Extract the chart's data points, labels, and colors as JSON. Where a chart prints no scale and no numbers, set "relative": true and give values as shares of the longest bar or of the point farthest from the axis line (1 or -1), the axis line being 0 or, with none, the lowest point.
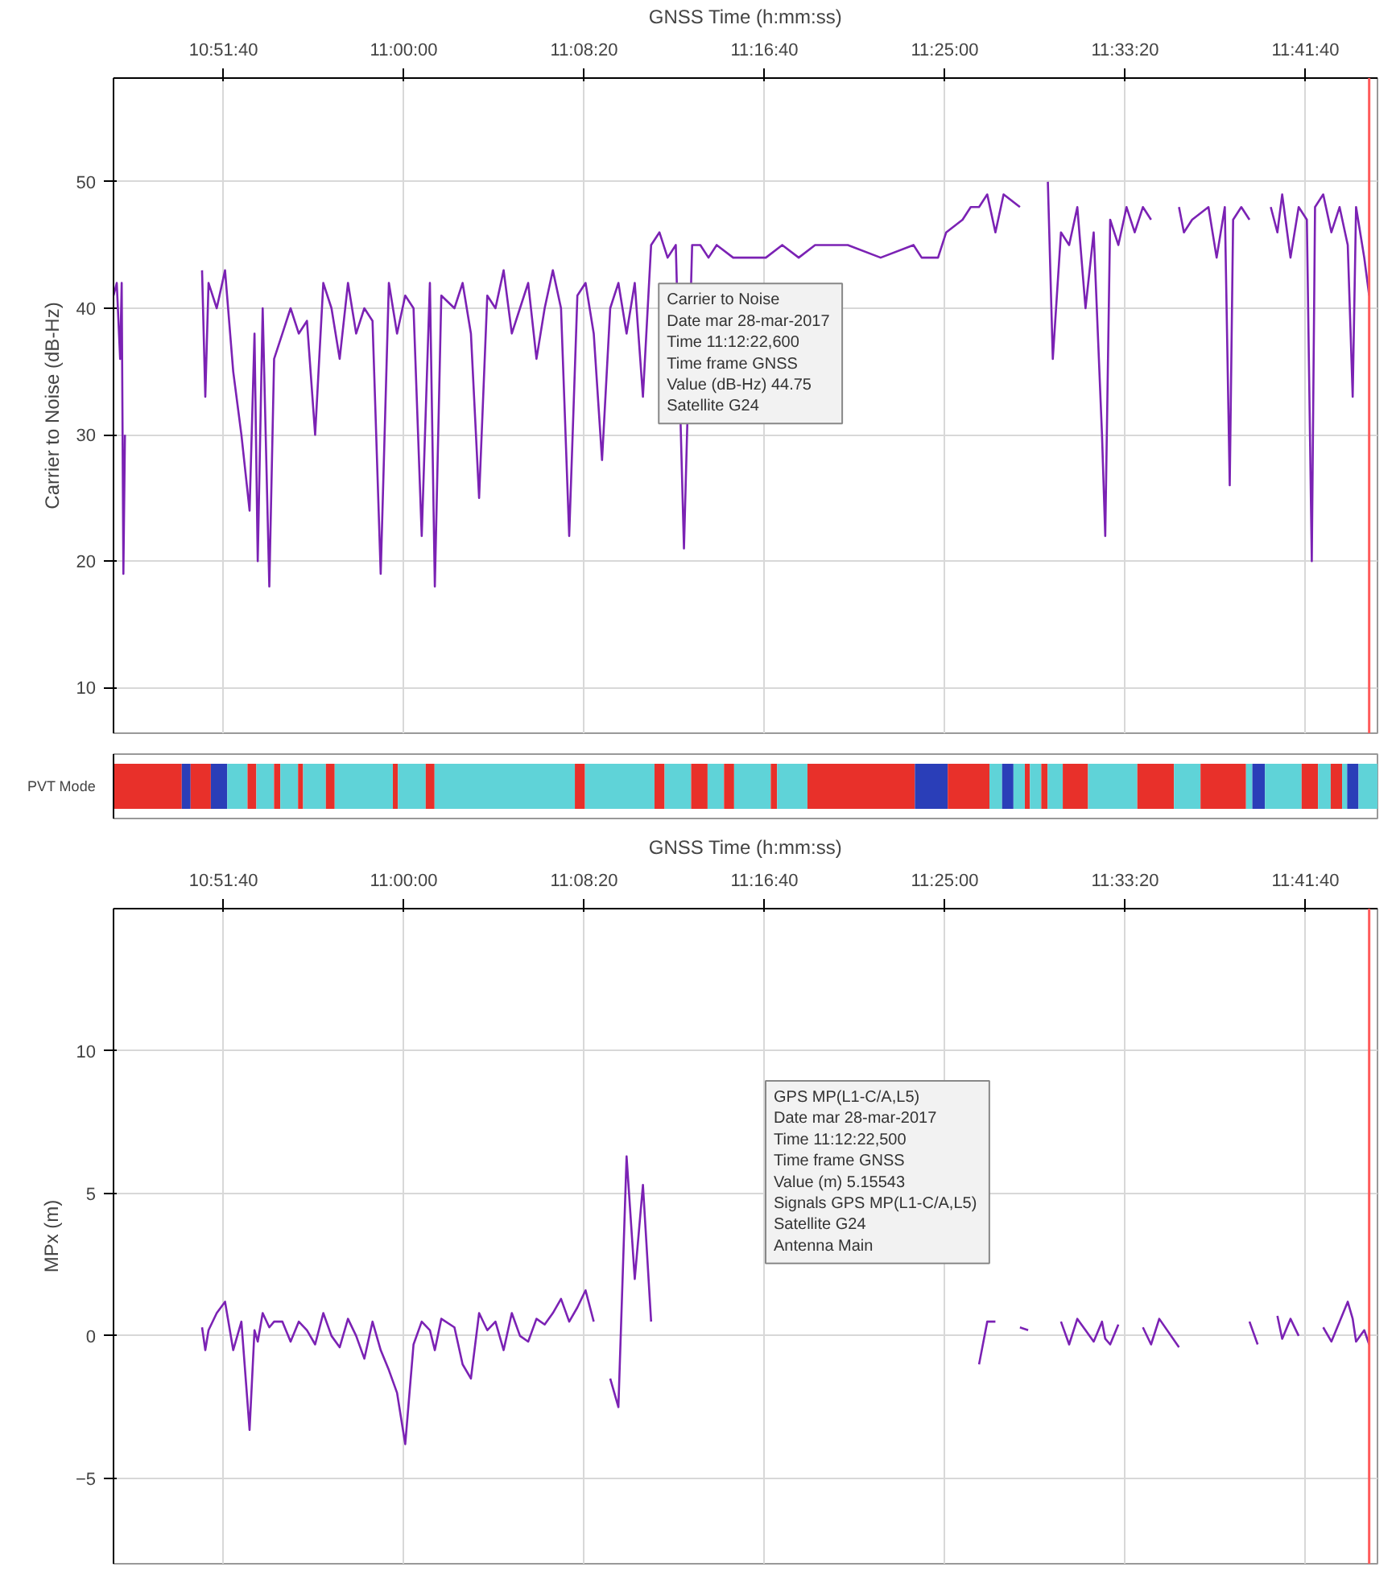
{
  "chart_data": [
    {
      "type": "line",
      "xlabel": "GNSS Time (h:mm:ss)",
      "ylabel": "Carrier to Noise (dB-Hz)",
      "xlim": [
        10.7764,
        11.75
      ],
      "xticks": [
        {
          "value": 10.86111,
          "label": "10:51:40"
        },
        {
          "value": 11.0,
          "label": "11:00:00"
        },
        {
          "value": 11.13889,
          "label": "11:08:20"
        },
        {
          "value": 11.27778,
          "label": "11:16:40"
        },
        {
          "value": 11.41667,
          "label": "11:25:00"
        },
        {
          "value": 11.55556,
          "label": "11:33:20"
        },
        {
          "value": 11.69444,
          "label": "11:41:40"
        }
      ],
      "ylim": [
        6.4,
        58.2
      ],
      "yticks": [
        10,
        20,
        30,
        40,
        50
      ],
      "grid": true,
      "x": [
        10.7764,
        10.7789,
        10.7815,
        10.7827,
        10.784,
        10.7852,
        10.7865,
        10.8446,
        10.8471,
        10.8496,
        10.8559,
        10.8623,
        10.8686,
        10.8749,
        10.8812,
        10.885,
        10.8875,
        10.8913,
        10.8964,
        10.9001,
        10.9065,
        10.9128,
        10.9191,
        10.9254,
        10.9317,
        10.938,
        10.9443,
        10.9506,
        10.957,
        10.9633,
        10.9696,
        10.9759,
        10.9822,
        10.9885,
        10.9948,
        11.0011,
        11.0075,
        11.0138,
        11.0201,
        11.0239,
        11.0289,
        11.039,
        11.0453,
        11.0517,
        11.058,
        11.0643,
        11.0706,
        11.0769,
        11.0832,
        11.0895,
        11.0958,
        11.1022,
        11.1085,
        11.1148,
        11.1211,
        11.1274,
        11.1337,
        11.14,
        11.1463,
        11.1527,
        11.159,
        11.1653,
        11.1716,
        11.1779,
        11.1842,
        11.1905,
        11.1969,
        11.2032,
        11.2095,
        11.2158,
        11.2221,
        11.2284,
        11.2347,
        11.241,
        11.2537,
        11.2663,
        11.2789,
        11.2915,
        11.3042,
        11.3168,
        11.342,
        11.3673,
        11.3926,
        11.3989,
        11.4052,
        11.4115,
        11.4178,
        11.4304,
        11.4367,
        11.4431,
        11.4494,
        11.4557,
        11.462,
        11.4746,
        11.4809,
        11.4961,
        11.4999,
        11.5062,
        11.5125,
        11.5188,
        11.5251,
        11.5314,
        11.5378,
        11.5403,
        11.5441,
        11.5504,
        11.5567,
        11.563,
        11.5693,
        11.5756,
        11.5819,
        11.5971,
        11.6009,
        11.6072,
        11.6198,
        11.6261,
        11.6324,
        11.6362,
        11.6388,
        11.6451,
        11.6514,
        11.6577,
        11.6678,
        11.6729,
        11.6766,
        11.683,
        11.6893,
        11.6956,
        11.6994,
        11.7019,
        11.7082,
        11.7145,
        11.7208,
        11.7271,
        11.7309,
        11.7335,
        11.7398,
        11.7436
      ],
      "series": [
        {
          "color": "#7b22b4",
          "values": [
            41,
            42,
            36,
            42,
            19,
            30,
            null,
            43,
            33,
            42,
            40,
            43,
            35,
            30,
            24,
            38,
            20,
            40,
            18,
            36,
            38,
            40,
            38,
            39,
            30,
            42,
            40,
            36,
            42,
            38,
            40,
            39,
            19,
            42,
            38,
            41,
            40,
            22,
            42,
            18,
            41,
            40,
            42,
            38,
            25,
            41,
            40,
            43,
            38,
            40,
            42,
            36,
            40,
            43,
            40,
            22,
            41,
            42,
            38,
            28,
            40,
            42,
            38,
            42,
            33,
            45,
            46,
            44,
            45,
            21,
            45,
            45,
            44,
            45,
            44,
            44,
            44,
            45,
            44,
            45,
            45,
            44,
            45,
            44,
            44,
            44,
            46,
            47,
            48,
            48,
            49,
            46,
            49,
            48,
            null,
            50,
            36,
            46,
            45,
            48,
            40,
            46,
            30,
            22,
            47,
            45,
            48,
            46,
            48,
            47,
            null,
            48,
            46,
            47,
            48,
            44,
            48,
            26,
            47,
            48,
            47,
            null,
            48,
            46,
            49,
            44,
            48,
            47,
            20,
            48,
            49,
            46,
            48,
            45,
            33,
            48,
            44,
            41
          ]
        }
      ],
      "ref_lines": [
        {
          "axis": "x",
          "value": 11.7436,
          "color": "#ff5a5a"
        }
      ],
      "annotations": [
        {
          "text": "Carrier to Noise\nDate  mar 28-mar-2017\nTime  11:12:22,600\nTime frame  GNSS\nValue (dB-Hz)  44.75\nSatellite  G24",
          "x": 11.2063,
          "y": 44.75
        }
      ]
    },
    {
      "type": "bar",
      "orientation": "horizontal",
      "stacked": true,
      "relative": true,
      "categories": [
        "PVT Mode"
      ],
      "series": [
        {
          "color": "#e8302a",
          "values": [
            0.054
          ]
        },
        {
          "color": "#2a3eb8",
          "values": [
            0.007
          ]
        },
        {
          "color": "#e8302a",
          "values": [
            0.016
          ]
        },
        {
          "color": "#2a3eb8",
          "values": [
            0.013
          ]
        },
        {
          "color": "#5fd3d8",
          "values": [
            0.016
          ]
        },
        {
          "color": "#e8302a",
          "values": [
            0.007
          ]
        },
        {
          "color": "#5fd3d8",
          "values": [
            0.014
          ]
        },
        {
          "color": "#e8302a",
          "values": [
            0.005
          ]
        },
        {
          "color": "#5fd3d8",
          "values": [
            0.014
          ]
        },
        {
          "color": "#e8302a",
          "values": [
            0.004
          ]
        },
        {
          "color": "#5fd3d8",
          "values": [
            0.018
          ]
        },
        {
          "color": "#e8302a",
          "values": [
            0.007
          ]
        },
        {
          "color": "#5fd3d8",
          "values": [
            0.046
          ]
        },
        {
          "color": "#e8302a",
          "values": [
            0.004
          ]
        },
        {
          "color": "#5fd3d8",
          "values": [
            0.022
          ]
        },
        {
          "color": "#e8302a",
          "values": [
            0.007
          ]
        },
        {
          "color": "#5fd3d8",
          "values": [
            0.111
          ]
        },
        {
          "color": "#e8302a",
          "values": [
            0.008
          ]
        },
        {
          "color": "#5fd3d8",
          "values": [
            0.055
          ]
        },
        {
          "color": "#e8302a",
          "values": [
            0.008
          ]
        },
        {
          "color": "#5fd3d8",
          "values": [
            0.021
          ]
        },
        {
          "color": "#e8302a",
          "values": [
            0.013
          ]
        },
        {
          "color": "#5fd3d8",
          "values": [
            0.013
          ]
        },
        {
          "color": "#e8302a",
          "values": [
            0.008
          ]
        },
        {
          "color": "#5fd3d8",
          "values": [
            0.029
          ]
        },
        {
          "color": "#e8302a",
          "values": [
            0.005
          ]
        },
        {
          "color": "#5fd3d8",
          "values": [
            0.024
          ]
        },
        {
          "color": "#e8302a",
          "values": [
            0.085
          ]
        },
        {
          "color": "#2a3eb8",
          "values": [
            0.026
          ]
        },
        {
          "color": "#e8302a",
          "values": [
            0.033
          ]
        },
        {
          "color": "#5fd3d8",
          "values": [
            0.01
          ]
        },
        {
          "color": "#2a3eb8",
          "values": [
            0.009
          ]
        },
        {
          "color": "#5fd3d8",
          "values": [
            0.009
          ]
        },
        {
          "color": "#e8302a",
          "values": [
            0.004
          ]
        },
        {
          "color": "#5fd3d8",
          "values": [
            0.009
          ]
        },
        {
          "color": "#e8302a",
          "values": [
            0.005
          ]
        },
        {
          "color": "#5fd3d8",
          "values": [
            0.012
          ]
        },
        {
          "color": "#e8302a",
          "values": [
            0.02
          ]
        },
        {
          "color": "#5fd3d8",
          "values": [
            0.039
          ]
        },
        {
          "color": "#e8302a",
          "values": [
            0.029
          ]
        },
        {
          "color": "#5fd3d8",
          "values": [
            0.021
          ]
        },
        {
          "color": "#e8302a",
          "values": [
            0.036
          ]
        },
        {
          "color": "#5fd3d8",
          "values": [
            0.005
          ]
        },
        {
          "color": "#2a3eb8",
          "values": [
            0.01
          ]
        },
        {
          "color": "#5fd3d8",
          "values": [
            0.029
          ]
        },
        {
          "color": "#e8302a",
          "values": [
            0.013
          ]
        },
        {
          "color": "#5fd3d8",
          "values": [
            0.01
          ]
        },
        {
          "color": "#e8302a",
          "values": [
            0.009
          ]
        },
        {
          "color": "#5fd3d8",
          "values": [
            0.004
          ]
        },
        {
          "color": "#2a3eb8",
          "values": [
            0.009
          ]
        },
        {
          "color": "#5fd3d8",
          "values": [
            0.015
          ]
        }
      ]
    },
    {
      "type": "line",
      "xlabel": "GNSS Time (h:mm:ss)",
      "ylabel": "MPx (m)",
      "xlim": [
        10.7764,
        11.75
      ],
      "xticks": [
        {
          "value": 10.86111,
          "label": "10:51:40"
        },
        {
          "value": 11.0,
          "label": "11:00:00"
        },
        {
          "value": 11.13889,
          "label": "11:08:20"
        },
        {
          "value": 11.27778,
          "label": "11:16:40"
        },
        {
          "value": 11.41667,
          "label": "11:25:00"
        },
        {
          "value": 11.55556,
          "label": "11:33:20"
        },
        {
          "value": 11.69444,
          "label": "11:41:40"
        }
      ],
      "ylim": [
        -8,
        15
      ],
      "yticks": [
        -5,
        0,
        5,
        10
      ],
      "grid": true,
      "x": [
        10.8446,
        10.8471,
        10.8496,
        10.8559,
        10.8623,
        10.8686,
        10.8749,
        10.8812,
        10.885,
        10.8875,
        10.8913,
        10.8964,
        10.9001,
        10.9065,
        10.9128,
        10.9191,
        10.9254,
        10.9317,
        10.938,
        10.9443,
        10.9506,
        10.957,
        10.9633,
        10.9696,
        10.9759,
        10.9822,
        10.9885,
        10.9948,
        11.0011,
        11.0075,
        11.0138,
        11.0201,
        11.0239,
        11.0289,
        11.039,
        11.0453,
        11.0517,
        11.058,
        11.0643,
        11.0706,
        11.0769,
        11.0832,
        11.0895,
        11.0958,
        11.1022,
        11.1085,
        11.1148,
        11.1211,
        11.1274,
        11.1337,
        11.14,
        11.1463,
        11.1527,
        11.159,
        11.1653,
        11.1716,
        11.1779,
        11.1842,
        11.1905,
        11.1969,
        11.2032,
        11.2095,
        11.2158,
        11.2221,
        11.2284,
        11.2347,
        11.241,
        11.2537,
        11.2663,
        11.2789,
        11.2915,
        11.3042,
        11.3168,
        11.342,
        11.3673,
        11.3926,
        11.3989,
        11.4052,
        11.4115,
        11.4178,
        11.4304,
        11.4367,
        11.4431,
        11.4494,
        11.4557,
        11.462,
        11.4746,
        11.4809,
        11.4961,
        11.4999,
        11.5062,
        11.5125,
        11.5188,
        11.5251,
        11.5314,
        11.5378,
        11.5403,
        11.5441,
        11.5504,
        11.5567,
        11.563,
        11.5693,
        11.5756,
        11.5819,
        11.5971,
        11.6009,
        11.6072,
        11.6198,
        11.6261,
        11.6324,
        11.6362,
        11.6388,
        11.6451,
        11.6514,
        11.6577,
        11.6678,
        11.6729,
        11.6766,
        11.683,
        11.6893,
        11.6956,
        11.6994,
        11.7019,
        11.7082,
        11.7145,
        11.7208,
        11.7271,
        11.7309,
        11.7335,
        11.7398,
        11.7436
      ],
      "series": [
        {
          "color": "#7b22b4",
          "values": [
            0.3,
            -0.5,
            0.2,
            0.8,
            1.2,
            -0.5,
            0.5,
            -3.3,
            0.2,
            -0.2,
            0.8,
            0.3,
            0.5,
            0.5,
            -0.2,
            0.5,
            0.2,
            -0.3,
            0.8,
            0,
            -0.4,
            0.6,
            0,
            -0.8,
            0.5,
            -0.5,
            -1.2,
            -2,
            -3.8,
            -0.3,
            0.5,
            0.2,
            -0.5,
            0.6,
            0.3,
            -1,
            -1.5,
            0.8,
            0.2,
            0.5,
            -0.5,
            0.8,
            0,
            -0.2,
            0.6,
            0.4,
            0.8,
            1.3,
            0.5,
            1,
            1.6,
            0.5,
            null,
            -1.5,
            -2.5,
            6.3,
            2,
            5.3,
            0.5,
            null,
            null,
            null,
            null,
            null,
            null,
            null,
            null,
            null,
            null,
            null,
            null,
            null,
            null,
            null,
            null,
            null,
            null,
            null,
            null,
            null,
            null,
            null,
            -1,
            0.5,
            0.5,
            null,
            0.3,
            0.2,
            null,
            null,
            0.5,
            -0.3,
            0.6,
            0.2,
            -0.2,
            0.5,
            -0.1,
            -0.3,
            0.4,
            null,
            null,
            0.3,
            -0.3,
            0.6,
            -0.4,
            null,
            null,
            null,
            null,
            null,
            null,
            null,
            null,
            0.5,
            -0.3,
            null,
            0.7,
            -0.1,
            0.6,
            0,
            null,
            null,
            null,
            0.3,
            -0.2,
            0.5,
            1.2,
            0.6,
            -0.2,
            0.2,
            -0.3
          ]
        }
      ],
      "ref_lines": [
        {
          "axis": "x",
          "value": 11.7436,
          "color": "#ff5a5a"
        }
      ],
      "annotations": [
        "GPS MP(L1-C/A,L5)\nDate  mar 28-mar-2017\nTime  11:12:22,500\nTime frame  GNSS\nValue (m)  5.15543\nSignals  GPS MP(L1-C/A,L5)\nSatellite  G24\nAntenna  Main"
      ]
    }
  ]
}
